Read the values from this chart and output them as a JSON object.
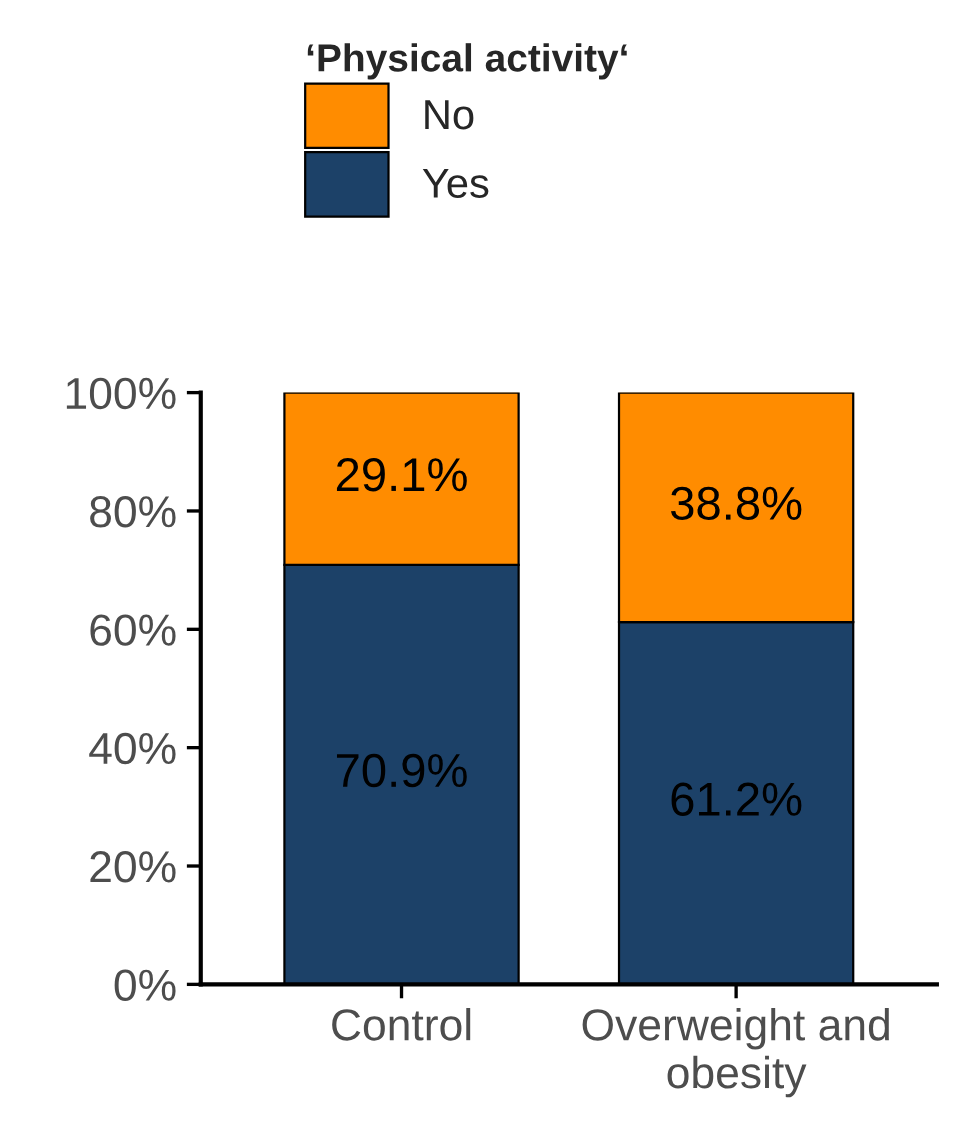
{
  "chart_data": {
    "type": "bar",
    "stacked": true,
    "legend_title": "‘Physical activity‘",
    "legend": "top",
    "categories": [
      "Control",
      "Overweight and\nobesity"
    ],
    "series": [
      {
        "name": "Yes",
        "color": "#1c4168",
        "values": [
          70.9,
          61.2
        ],
        "value_labels": [
          "70.9%",
          "61.2%"
        ]
      },
      {
        "name": "No",
        "color": "#ff8c00",
        "values": [
          29.1,
          38.8
        ],
        "value_labels": [
          "29.1%",
          "38.8%"
        ]
      }
    ],
    "ylim": [
      0,
      100
    ],
    "yticks": [
      {
        "value": 0,
        "label": "0%"
      },
      {
        "value": 20,
        "label": "20%"
      },
      {
        "value": 40,
        "label": "40%"
      },
      {
        "value": 60,
        "label": "60%"
      },
      {
        "value": 80,
        "label": "80%"
      },
      {
        "value": 100,
        "label": "100%"
      }
    ],
    "grid": false
  }
}
